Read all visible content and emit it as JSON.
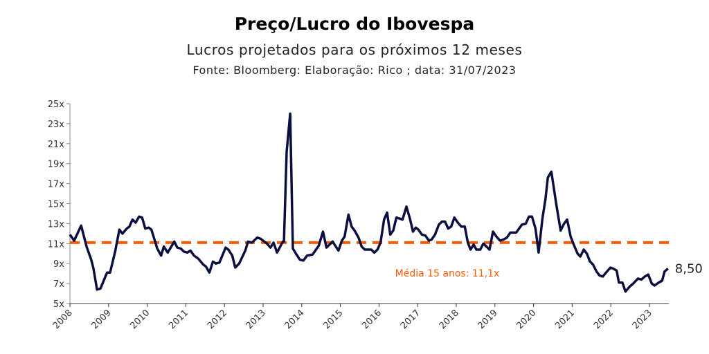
{
  "chart_data": {
    "type": "line",
    "title": "Preço/Lucro do Ibovespa",
    "subtitle": "Lucros projetados para os próximos 12 meses",
    "source": "Fonte: Bloomberg: Elaboração: Rico ; data: 31/07/2023",
    "xlabel": "",
    "ylabel": "",
    "xlim": [
      2008,
      2023.5
    ],
    "ylim": [
      5,
      25
    ],
    "y_ticks": [
      5,
      7,
      9,
      11,
      13,
      15,
      17,
      19,
      21,
      23,
      25
    ],
    "y_tick_labels": [
      "5x",
      "7x",
      "9x",
      "11x",
      "13x",
      "15x",
      "17x",
      "19x",
      "21x",
      "23x",
      "25x"
    ],
    "x_ticks": [
      2008,
      2009,
      2010,
      2011,
      2012,
      2013,
      2014,
      2015,
      2016,
      2017,
      2018,
      2019,
      2020,
      2021,
      2022,
      2023
    ],
    "x_tick_labels": [
      "2008",
      "2009",
      "2010",
      "2011",
      "2012",
      "2013",
      "2014",
      "2015",
      "2016",
      "2017",
      "2018",
      "2019",
      "2020",
      "2021",
      "2022",
      "2023"
    ],
    "grid": false,
    "series": [
      {
        "name": "P/L Ibovespa",
        "color": "#0b0f3f",
        "points": [
          [
            2008.0,
            11.9
          ],
          [
            2008.11,
            11.3
          ],
          [
            2008.29,
            12.8
          ],
          [
            2008.43,
            10.7
          ],
          [
            2008.55,
            9.4
          ],
          [
            2008.61,
            8.5
          ],
          [
            2008.7,
            6.4
          ],
          [
            2008.79,
            6.5
          ],
          [
            2008.96,
            8.1
          ],
          [
            2009.04,
            8.1
          ],
          [
            2009.17,
            10.2
          ],
          [
            2009.28,
            12.4
          ],
          [
            2009.36,
            12.0
          ],
          [
            2009.47,
            12.5
          ],
          [
            2009.54,
            12.7
          ],
          [
            2009.62,
            13.4
          ],
          [
            2009.7,
            13.1
          ],
          [
            2009.79,
            13.7
          ],
          [
            2009.87,
            13.6
          ],
          [
            2009.95,
            12.5
          ],
          [
            2010.04,
            12.6
          ],
          [
            2010.11,
            12.4
          ],
          [
            2010.26,
            10.5
          ],
          [
            2010.36,
            9.8
          ],
          [
            2010.43,
            10.7
          ],
          [
            2010.53,
            10.1
          ],
          [
            2010.7,
            11.2
          ],
          [
            2010.78,
            10.6
          ],
          [
            2010.87,
            10.5
          ],
          [
            2010.95,
            10.2
          ],
          [
            2011.04,
            10.1
          ],
          [
            2011.12,
            10.3
          ],
          [
            2011.21,
            9.8
          ],
          [
            2011.32,
            9.5
          ],
          [
            2011.45,
            8.9
          ],
          [
            2011.52,
            8.7
          ],
          [
            2011.61,
            8.1
          ],
          [
            2011.7,
            9.2
          ],
          [
            2011.78,
            9.0
          ],
          [
            2011.87,
            9.1
          ],
          [
            2012.03,
            10.6
          ],
          [
            2012.1,
            10.4
          ],
          [
            2012.2,
            9.8
          ],
          [
            2012.28,
            8.6
          ],
          [
            2012.38,
            9.0
          ],
          [
            2012.54,
            10.3
          ],
          [
            2012.61,
            11.2
          ],
          [
            2012.71,
            11.1
          ],
          [
            2012.85,
            11.6
          ],
          [
            2012.93,
            11.5
          ],
          [
            2013.1,
            11.0
          ],
          [
            2013.19,
            10.6
          ],
          [
            2013.27,
            11.1
          ],
          [
            2013.36,
            10.1
          ],
          [
            2013.51,
            11.2
          ],
          [
            2013.54,
            11.2
          ],
          [
            2013.61,
            20.2
          ],
          [
            2013.7,
            24.0
          ],
          [
            2013.77,
            10.5
          ],
          [
            2013.85,
            10.0
          ],
          [
            2013.95,
            9.4
          ],
          [
            2014.04,
            9.3
          ],
          [
            2014.14,
            9.8
          ],
          [
            2014.28,
            9.9
          ],
          [
            2014.44,
            10.8
          ],
          [
            2014.55,
            12.2
          ],
          [
            2014.64,
            10.6
          ],
          [
            2014.8,
            11.2
          ],
          [
            2014.95,
            10.3
          ],
          [
            2015.04,
            11.3
          ],
          [
            2015.11,
            11.7
          ],
          [
            2015.21,
            13.9
          ],
          [
            2015.29,
            12.7
          ],
          [
            2015.37,
            12.3
          ],
          [
            2015.47,
            11.6
          ],
          [
            2015.55,
            10.7
          ],
          [
            2015.63,
            10.4
          ],
          [
            2015.8,
            10.4
          ],
          [
            2015.88,
            10.1
          ],
          [
            2015.96,
            10.4
          ],
          [
            2016.04,
            11.1
          ],
          [
            2016.13,
            13.4
          ],
          [
            2016.21,
            14.1
          ],
          [
            2016.29,
            11.9
          ],
          [
            2016.37,
            12.3
          ],
          [
            2016.45,
            13.6
          ],
          [
            2016.54,
            13.5
          ],
          [
            2016.61,
            13.4
          ],
          [
            2016.71,
            14.7
          ],
          [
            2016.8,
            13.5
          ],
          [
            2016.88,
            12.2
          ],
          [
            2016.95,
            12.6
          ],
          [
            2017.02,
            12.4
          ],
          [
            2017.11,
            11.9
          ],
          [
            2017.2,
            11.8
          ],
          [
            2017.29,
            11.3
          ],
          [
            2017.36,
            11.4
          ],
          [
            2017.45,
            11.9
          ],
          [
            2017.55,
            12.9
          ],
          [
            2017.63,
            13.2
          ],
          [
            2017.71,
            13.2
          ],
          [
            2017.79,
            12.5
          ],
          [
            2017.87,
            12.7
          ],
          [
            2017.95,
            13.6
          ],
          [
            2018.04,
            13.1
          ],
          [
            2018.13,
            12.7
          ],
          [
            2018.22,
            12.7
          ],
          [
            2018.3,
            11.1
          ],
          [
            2018.37,
            10.4
          ],
          [
            2018.45,
            10.9
          ],
          [
            2018.52,
            10.4
          ],
          [
            2018.62,
            10.4
          ],
          [
            2018.7,
            11.0
          ],
          [
            2018.86,
            10.4
          ],
          [
            2018.95,
            12.2
          ],
          [
            2019.04,
            11.7
          ],
          [
            2019.13,
            11.3
          ],
          [
            2019.22,
            11.4
          ],
          [
            2019.31,
            11.6
          ],
          [
            2019.4,
            12.1
          ],
          [
            2019.55,
            12.1
          ],
          [
            2019.7,
            12.9
          ],
          [
            2019.8,
            13.0
          ],
          [
            2019.88,
            13.7
          ],
          [
            2019.96,
            13.7
          ],
          [
            2020.05,
            12.5
          ],
          [
            2020.13,
            10.1
          ],
          [
            2020.23,
            13.5
          ],
          [
            2020.31,
            15.5
          ],
          [
            2020.37,
            17.6
          ],
          [
            2020.46,
            18.2
          ],
          [
            2020.59,
            14.9
          ],
          [
            2020.7,
            12.3
          ],
          [
            2020.79,
            13.0
          ],
          [
            2020.87,
            13.4
          ],
          [
            2020.96,
            11.7
          ],
          [
            2021.05,
            10.8
          ],
          [
            2021.14,
            10.0
          ],
          [
            2021.21,
            9.7
          ],
          [
            2021.3,
            10.4
          ],
          [
            2021.38,
            10.0
          ],
          [
            2021.46,
            9.2
          ],
          [
            2021.54,
            8.9
          ],
          [
            2021.63,
            8.2
          ],
          [
            2021.71,
            7.8
          ],
          [
            2021.79,
            7.7
          ],
          [
            2021.9,
            8.2
          ],
          [
            2021.99,
            8.6
          ],
          [
            2022.06,
            8.5
          ],
          [
            2022.15,
            8.3
          ],
          [
            2022.21,
            7.1
          ],
          [
            2022.3,
            7.1
          ],
          [
            2022.38,
            6.2
          ],
          [
            2022.49,
            6.7
          ],
          [
            2022.58,
            7.0
          ],
          [
            2022.7,
            7.5
          ],
          [
            2022.79,
            7.4
          ],
          [
            2022.88,
            7.7
          ],
          [
            2022.97,
            7.9
          ],
          [
            2023.06,
            7.0
          ],
          [
            2023.13,
            6.8
          ],
          [
            2023.24,
            7.1
          ],
          [
            2023.33,
            7.3
          ],
          [
            2023.39,
            8.2
          ],
          [
            2023.48,
            8.5
          ]
        ]
      }
    ],
    "average_line": {
      "value": 11.1,
      "label": "Média 15 anos: 11,1x",
      "color": "#ff5a00"
    },
    "last_value_label": "8,50"
  }
}
